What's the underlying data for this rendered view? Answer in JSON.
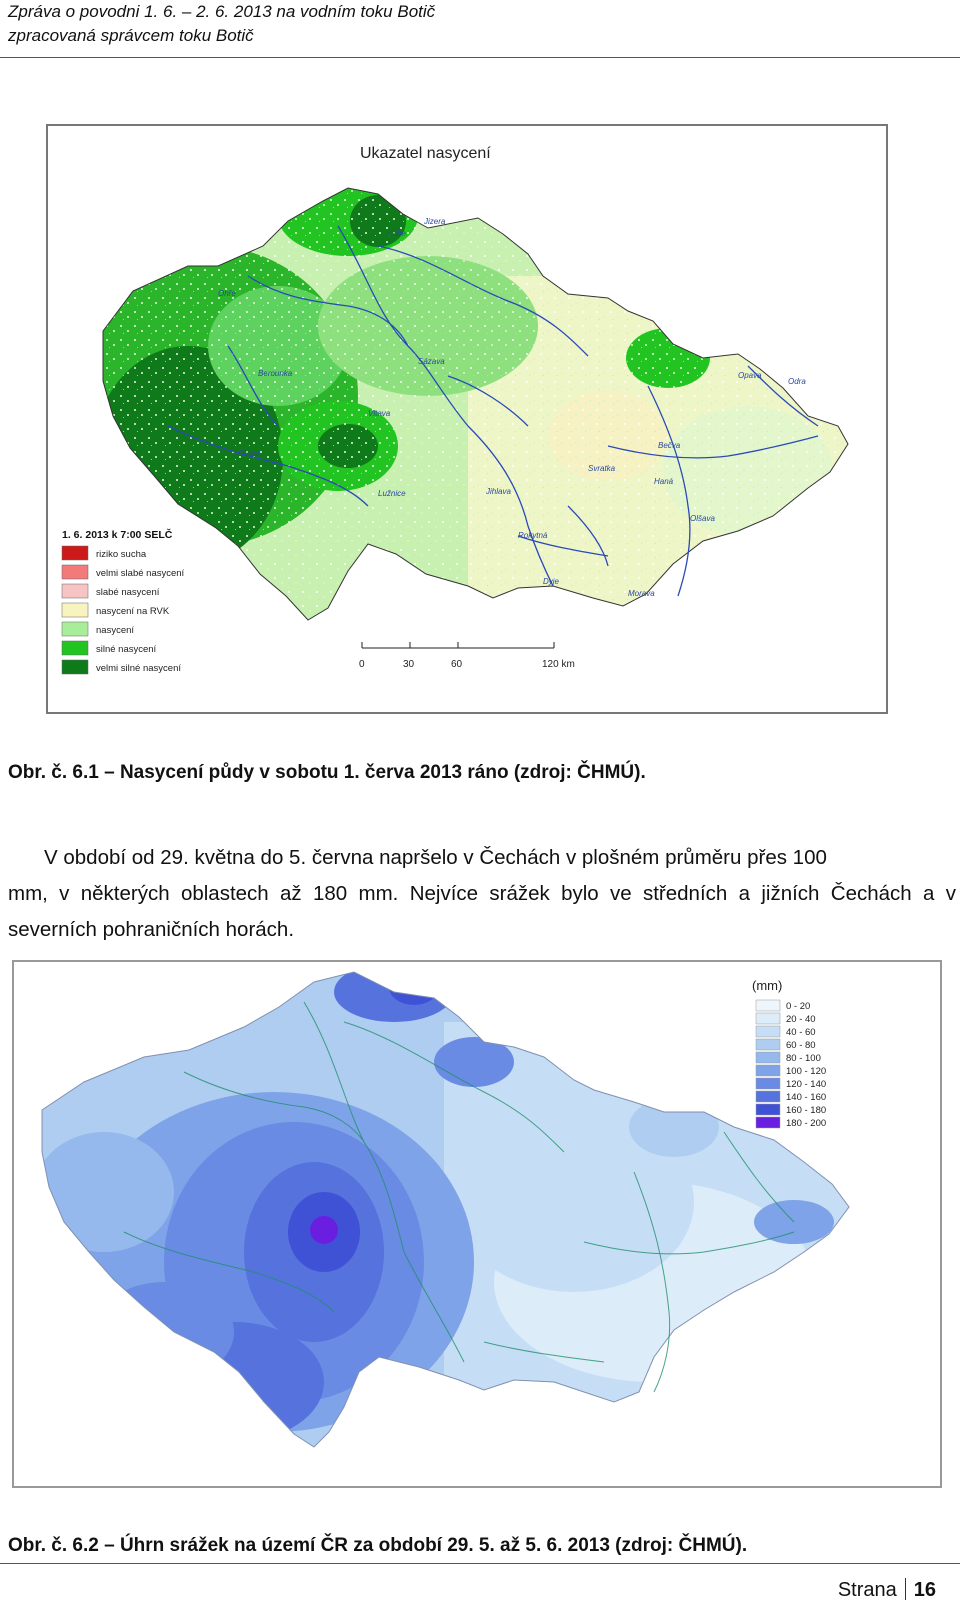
{
  "header": {
    "line1": "Zpráva o povodni 1. 6. – 2. 6. 2013 na vodním toku Botič",
    "line2": "zpracovaná správcem toku Botič"
  },
  "map1": {
    "title": "Ukazatel nasycení",
    "legend_title": "1. 6. 2013 k 7:00 SELČ",
    "legend": [
      {
        "label": "riziko sucha",
        "color": "#cc1a1a"
      },
      {
        "label": "velmi slabé nasycení",
        "color": "#f27a7a"
      },
      {
        "label": "slabé nasycení",
        "color": "#f7c4c4"
      },
      {
        "label": "nasycení na RVK",
        "color": "#f8f4c0"
      },
      {
        "label": "nasycení",
        "color": "#a8ee9a"
      },
      {
        "label": "silné nasycení",
        "color": "#22c422"
      },
      {
        "label": "velmi silné nasycení",
        "color": "#0f7a1a"
      }
    ],
    "scale": {
      "ticks": [
        "0",
        "30",
        "60",
        "120 km"
      ]
    },
    "rivers": [
      "Morava",
      "Odra",
      "Opava",
      "Bečva",
      "Haná",
      "Olšava",
      "Dyje",
      "Svratka",
      "Rokytná",
      "Jihlava",
      "Sázava",
      "Vltava",
      "Ohře",
      "Labe",
      "Jizera",
      "Lužnice",
      "Otava",
      "Berounka"
    ]
  },
  "caption1": "Obr. č. 6.1 – Nasycení půdy v sobotu 1. červa 2013 ráno (zdroj: ČHMÚ).",
  "paragraph": {
    "line1": "V období od 29. května do 5. června napršelo v Čechách v plošném průměru přes 100",
    "rest": "mm, v některých oblastech až 180 mm. Nejvíce srážek bylo ve středních a jižních Čechách a v severních pohraničních horách."
  },
  "map2": {
    "legend_title": "(mm)",
    "legend": [
      {
        "label": "0 - 20",
        "color": "#eef6fb"
      },
      {
        "label": "20 - 40",
        "color": "#dcecf8"
      },
      {
        "label": "40 - 60",
        "color": "#c6def5"
      },
      {
        "label": "60 - 80",
        "color": "#aecdf0"
      },
      {
        "label": "80 - 100",
        "color": "#95b9ec"
      },
      {
        "label": "100 - 120",
        "color": "#7fa3e8"
      },
      {
        "label": "120 - 140",
        "color": "#6a8be4"
      },
      {
        "label": "140 - 160",
        "color": "#5572dd"
      },
      {
        "label": "160 - 180",
        "color": "#3f52d6"
      },
      {
        "label": "180 - 200",
        "color": "#6a1fe0"
      }
    ]
  },
  "caption2": "Obr. č. 6.2 – Úhrn srážek na území ČR za období 29. 5. až 5. 6. 2013 (zdroj: ČHMÚ).",
  "footer": {
    "page_label": "Strana",
    "page_number": "16"
  }
}
